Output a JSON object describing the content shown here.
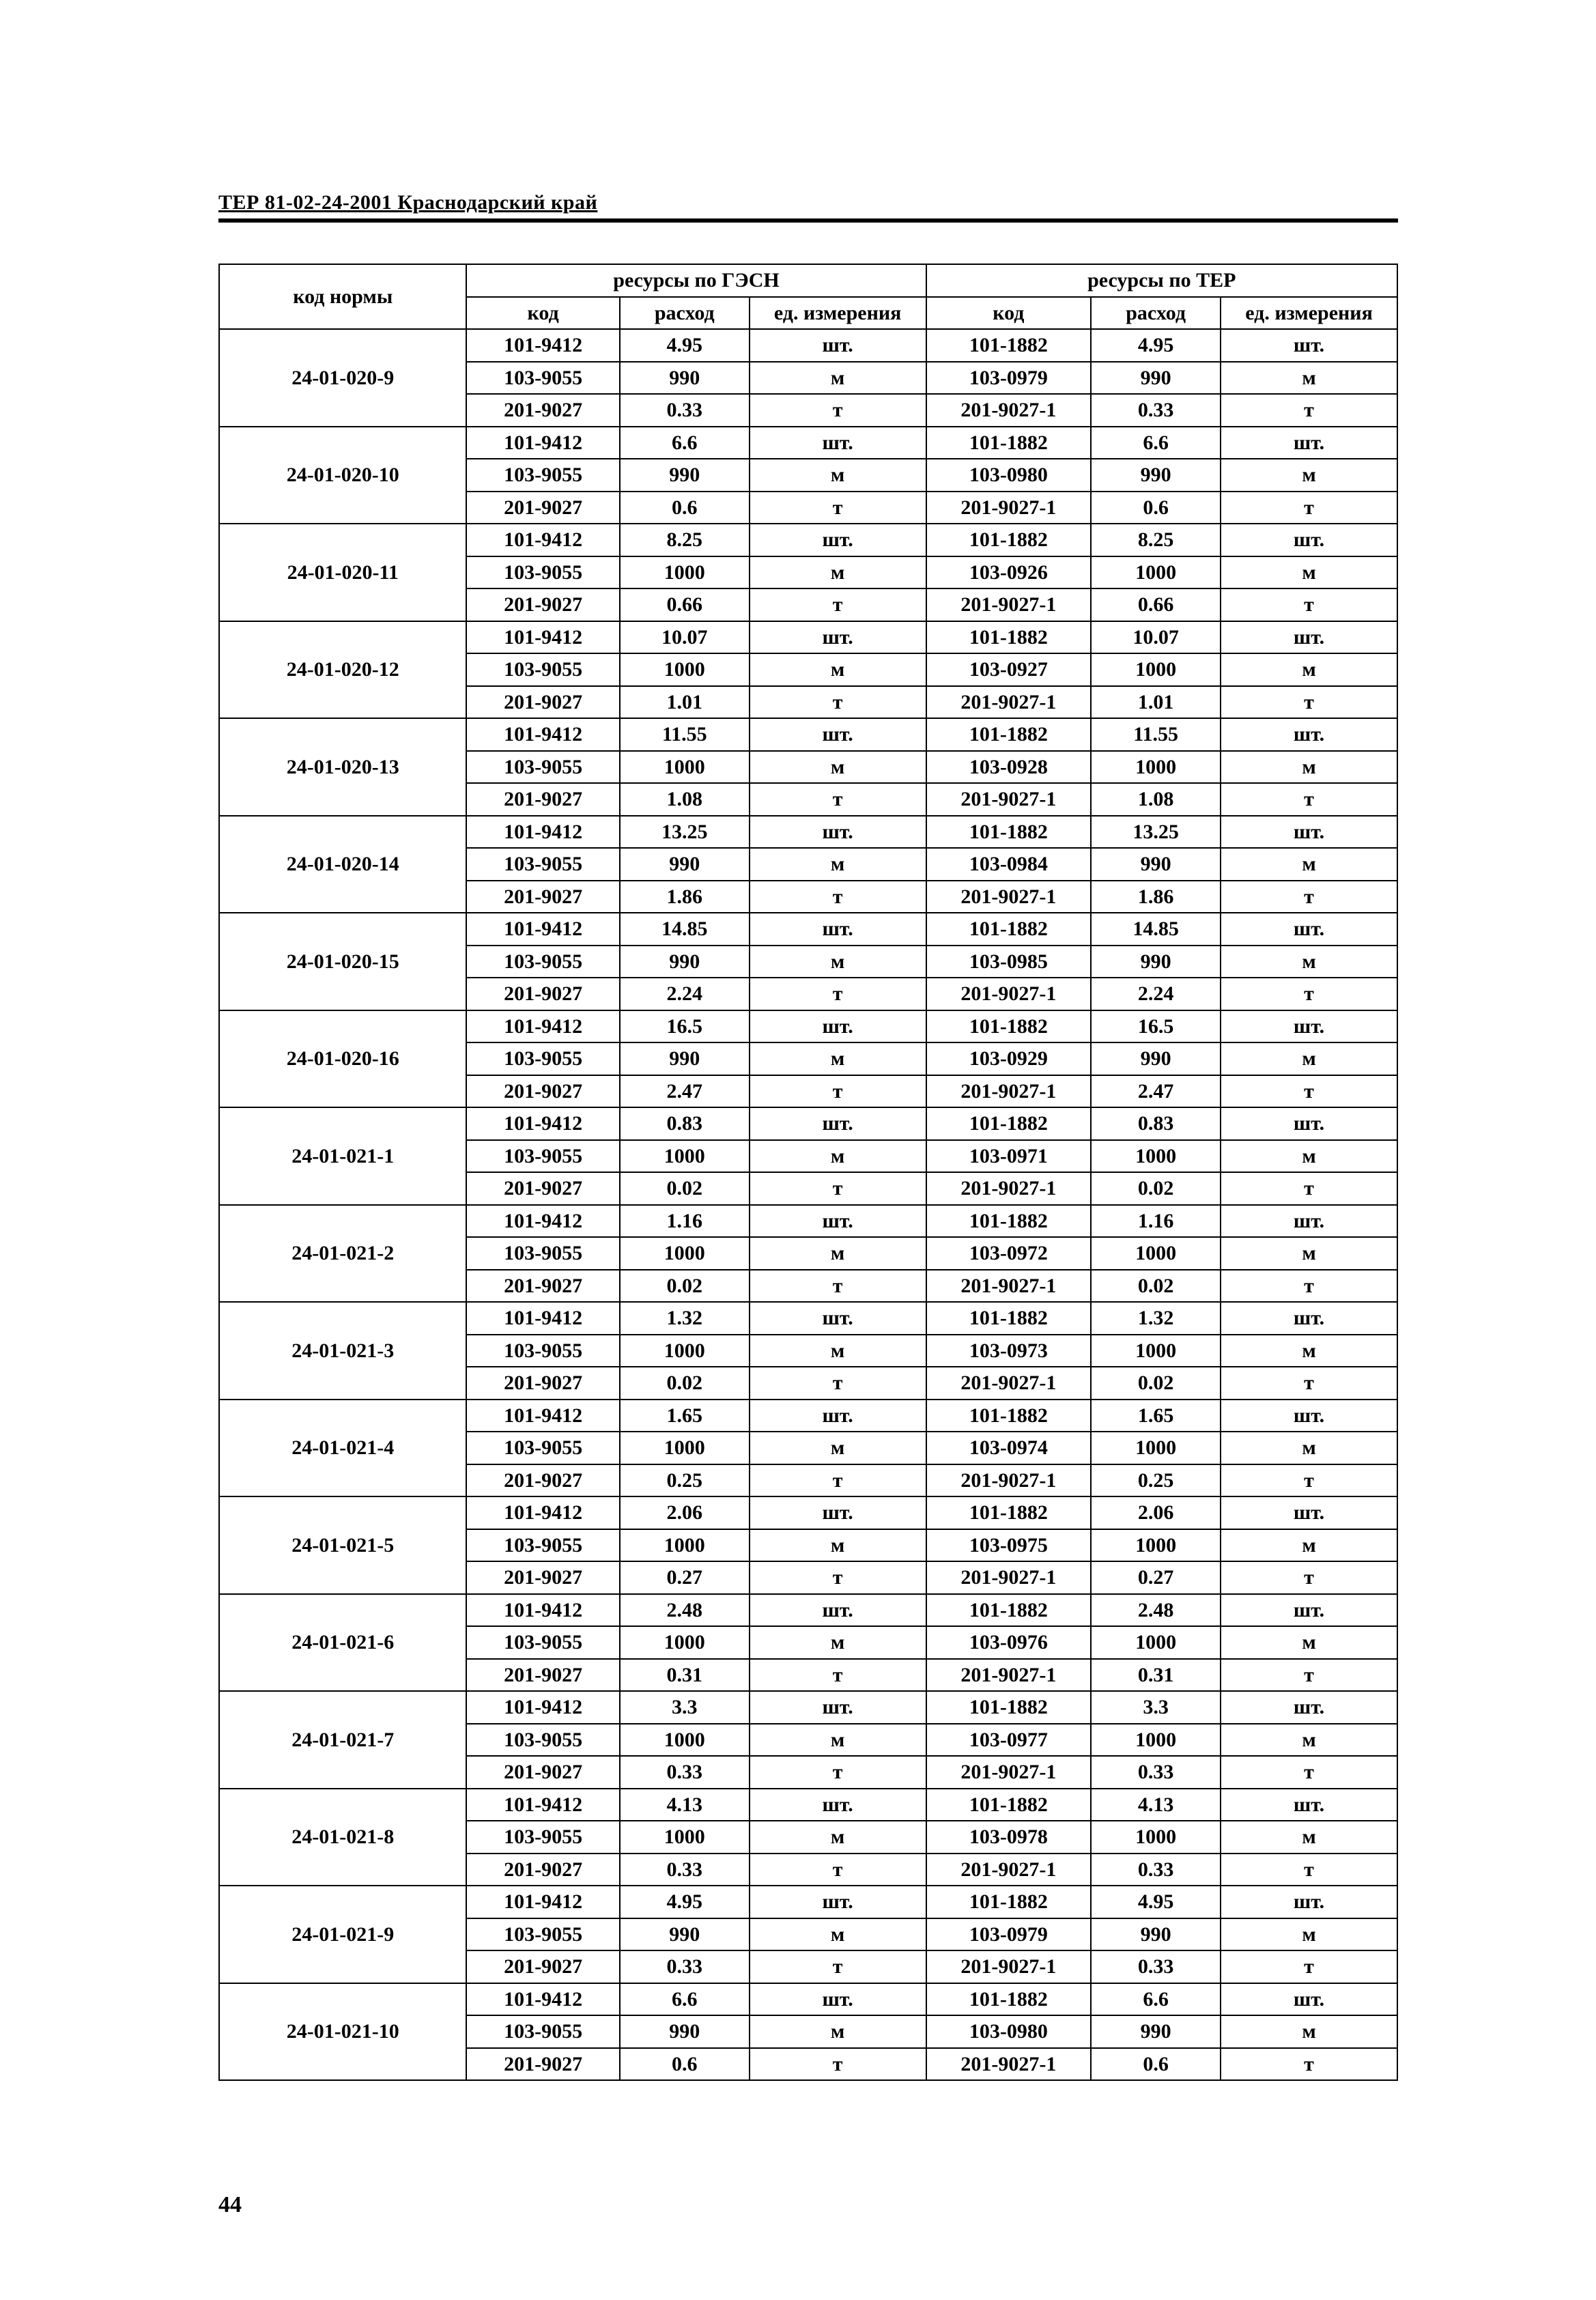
{
  "doc_header": "ТЕР 81-02-24-2001 Краснодарский край",
  "page_number": "44",
  "colors": {
    "text": "#000000",
    "background": "#ffffff",
    "border": "#000000"
  },
  "fonts": {
    "family": "Times New Roman",
    "header_size_pt": 11,
    "cell_size_pt": 11,
    "cell_weight": "bold"
  },
  "table": {
    "header": {
      "norm": "код нормы",
      "group1": "ресурсы по ГЭСН",
      "group2": "ресурсы по ТЕР",
      "kod": "код",
      "rashod": "расход",
      "ed": "ед. измерения"
    },
    "col_widths_pct": [
      21,
      13,
      11,
      15,
      14,
      11,
      15
    ],
    "groups": [
      {
        "norm": "24-01-020-9",
        "rows": [
          {
            "g1": {
              "kod": "101-9412",
              "ras": "4.95",
              "ed": "шт."
            },
            "g2": {
              "kod": "101-1882",
              "ras": "4.95",
              "ed": "шт."
            }
          },
          {
            "g1": {
              "kod": "103-9055",
              "ras": "990",
              "ed": "м"
            },
            "g2": {
              "kod": "103-0979",
              "ras": "990",
              "ed": "м"
            }
          },
          {
            "g1": {
              "kod": "201-9027",
              "ras": "0.33",
              "ed": "т"
            },
            "g2": {
              "kod": "201-9027-1",
              "ras": "0.33",
              "ed": "т"
            }
          }
        ]
      },
      {
        "norm": "24-01-020-10",
        "rows": [
          {
            "g1": {
              "kod": "101-9412",
              "ras": "6.6",
              "ed": "шт."
            },
            "g2": {
              "kod": "101-1882",
              "ras": "6.6",
              "ed": "шт."
            }
          },
          {
            "g1": {
              "kod": "103-9055",
              "ras": "990",
              "ed": "м"
            },
            "g2": {
              "kod": "103-0980",
              "ras": "990",
              "ed": "м"
            }
          },
          {
            "g1": {
              "kod": "201-9027",
              "ras": "0.6",
              "ed": "т"
            },
            "g2": {
              "kod": "201-9027-1",
              "ras": "0.6",
              "ed": "т"
            }
          }
        ]
      },
      {
        "norm": "24-01-020-11",
        "rows": [
          {
            "g1": {
              "kod": "101-9412",
              "ras": "8.25",
              "ed": "шт."
            },
            "g2": {
              "kod": "101-1882",
              "ras": "8.25",
              "ed": "шт."
            }
          },
          {
            "g1": {
              "kod": "103-9055",
              "ras": "1000",
              "ed": "м"
            },
            "g2": {
              "kod": "103-0926",
              "ras": "1000",
              "ed": "м"
            }
          },
          {
            "g1": {
              "kod": "201-9027",
              "ras": "0.66",
              "ed": "т"
            },
            "g2": {
              "kod": "201-9027-1",
              "ras": "0.66",
              "ed": "т"
            }
          }
        ]
      },
      {
        "norm": "24-01-020-12",
        "rows": [
          {
            "g1": {
              "kod": "101-9412",
              "ras": "10.07",
              "ed": "шт."
            },
            "g2": {
              "kod": "101-1882",
              "ras": "10.07",
              "ed": "шт."
            }
          },
          {
            "g1": {
              "kod": "103-9055",
              "ras": "1000",
              "ed": "м"
            },
            "g2": {
              "kod": "103-0927",
              "ras": "1000",
              "ed": "м"
            }
          },
          {
            "g1": {
              "kod": "201-9027",
              "ras": "1.01",
              "ed": "т"
            },
            "g2": {
              "kod": "201-9027-1",
              "ras": "1.01",
              "ed": "т"
            }
          }
        ]
      },
      {
        "norm": "24-01-020-13",
        "rows": [
          {
            "g1": {
              "kod": "101-9412",
              "ras": "11.55",
              "ed": "шт."
            },
            "g2": {
              "kod": "101-1882",
              "ras": "11.55",
              "ed": "шт."
            }
          },
          {
            "g1": {
              "kod": "103-9055",
              "ras": "1000",
              "ed": "м"
            },
            "g2": {
              "kod": "103-0928",
              "ras": "1000",
              "ed": "м"
            }
          },
          {
            "g1": {
              "kod": "201-9027",
              "ras": "1.08",
              "ed": "т"
            },
            "g2": {
              "kod": "201-9027-1",
              "ras": "1.08",
              "ed": "т"
            }
          }
        ]
      },
      {
        "norm": "24-01-020-14",
        "rows": [
          {
            "g1": {
              "kod": "101-9412",
              "ras": "13.25",
              "ed": "шт."
            },
            "g2": {
              "kod": "101-1882",
              "ras": "13.25",
              "ed": "шт."
            }
          },
          {
            "g1": {
              "kod": "103-9055",
              "ras": "990",
              "ed": "м"
            },
            "g2": {
              "kod": "103-0984",
              "ras": "990",
              "ed": "м"
            }
          },
          {
            "g1": {
              "kod": "201-9027",
              "ras": "1.86",
              "ed": "т"
            },
            "g2": {
              "kod": "201-9027-1",
              "ras": "1.86",
              "ed": "т"
            }
          }
        ]
      },
      {
        "norm": "24-01-020-15",
        "rows": [
          {
            "g1": {
              "kod": "101-9412",
              "ras": "14.85",
              "ed": "шт."
            },
            "g2": {
              "kod": "101-1882",
              "ras": "14.85",
              "ed": "шт."
            }
          },
          {
            "g1": {
              "kod": "103-9055",
              "ras": "990",
              "ed": "м"
            },
            "g2": {
              "kod": "103-0985",
              "ras": "990",
              "ed": "м"
            }
          },
          {
            "g1": {
              "kod": "201-9027",
              "ras": "2.24",
              "ed": "т"
            },
            "g2": {
              "kod": "201-9027-1",
              "ras": "2.24",
              "ed": "т"
            }
          }
        ]
      },
      {
        "norm": "24-01-020-16",
        "rows": [
          {
            "g1": {
              "kod": "101-9412",
              "ras": "16.5",
              "ed": "шт."
            },
            "g2": {
              "kod": "101-1882",
              "ras": "16.5",
              "ed": "шт."
            }
          },
          {
            "g1": {
              "kod": "103-9055",
              "ras": "990",
              "ed": "м"
            },
            "g2": {
              "kod": "103-0929",
              "ras": "990",
              "ed": "м"
            }
          },
          {
            "g1": {
              "kod": "201-9027",
              "ras": "2.47",
              "ed": "т"
            },
            "g2": {
              "kod": "201-9027-1",
              "ras": "2.47",
              "ed": "т"
            }
          }
        ]
      },
      {
        "norm": "24-01-021-1",
        "rows": [
          {
            "g1": {
              "kod": "101-9412",
              "ras": "0.83",
              "ed": "шт."
            },
            "g2": {
              "kod": "101-1882",
              "ras": "0.83",
              "ed": "шт."
            }
          },
          {
            "g1": {
              "kod": "103-9055",
              "ras": "1000",
              "ed": "м"
            },
            "g2": {
              "kod": "103-0971",
              "ras": "1000",
              "ed": "м"
            }
          },
          {
            "g1": {
              "kod": "201-9027",
              "ras": "0.02",
              "ed": "т"
            },
            "g2": {
              "kod": "201-9027-1",
              "ras": "0.02",
              "ed": "т"
            }
          }
        ]
      },
      {
        "norm": "24-01-021-2",
        "rows": [
          {
            "g1": {
              "kod": "101-9412",
              "ras": "1.16",
              "ed": "шт."
            },
            "g2": {
              "kod": "101-1882",
              "ras": "1.16",
              "ed": "шт."
            }
          },
          {
            "g1": {
              "kod": "103-9055",
              "ras": "1000",
              "ed": "м"
            },
            "g2": {
              "kod": "103-0972",
              "ras": "1000",
              "ed": "м"
            }
          },
          {
            "g1": {
              "kod": "201-9027",
              "ras": "0.02",
              "ed": "т"
            },
            "g2": {
              "kod": "201-9027-1",
              "ras": "0.02",
              "ed": "т"
            }
          }
        ]
      },
      {
        "norm": "24-01-021-3",
        "rows": [
          {
            "g1": {
              "kod": "101-9412",
              "ras": "1.32",
              "ed": "шт."
            },
            "g2": {
              "kod": "101-1882",
              "ras": "1.32",
              "ed": "шт."
            }
          },
          {
            "g1": {
              "kod": "103-9055",
              "ras": "1000",
              "ed": "м"
            },
            "g2": {
              "kod": "103-0973",
              "ras": "1000",
              "ed": "м"
            }
          },
          {
            "g1": {
              "kod": "201-9027",
              "ras": "0.02",
              "ed": "т"
            },
            "g2": {
              "kod": "201-9027-1",
              "ras": "0.02",
              "ed": "т"
            }
          }
        ]
      },
      {
        "norm": "24-01-021-4",
        "rows": [
          {
            "g1": {
              "kod": "101-9412",
              "ras": "1.65",
              "ed": "шт."
            },
            "g2": {
              "kod": "101-1882",
              "ras": "1.65",
              "ed": "шт."
            }
          },
          {
            "g1": {
              "kod": "103-9055",
              "ras": "1000",
              "ed": "м"
            },
            "g2": {
              "kod": "103-0974",
              "ras": "1000",
              "ed": "м"
            }
          },
          {
            "g1": {
              "kod": "201-9027",
              "ras": "0.25",
              "ed": "т"
            },
            "g2": {
              "kod": "201-9027-1",
              "ras": "0.25",
              "ed": "т"
            }
          }
        ]
      },
      {
        "norm": "24-01-021-5",
        "rows": [
          {
            "g1": {
              "kod": "101-9412",
              "ras": "2.06",
              "ed": "шт."
            },
            "g2": {
              "kod": "101-1882",
              "ras": "2.06",
              "ed": "шт."
            }
          },
          {
            "g1": {
              "kod": "103-9055",
              "ras": "1000",
              "ed": "м"
            },
            "g2": {
              "kod": "103-0975",
              "ras": "1000",
              "ed": "м"
            }
          },
          {
            "g1": {
              "kod": "201-9027",
              "ras": "0.27",
              "ed": "т"
            },
            "g2": {
              "kod": "201-9027-1",
              "ras": "0.27",
              "ed": "т"
            }
          }
        ]
      },
      {
        "norm": "24-01-021-6",
        "rows": [
          {
            "g1": {
              "kod": "101-9412",
              "ras": "2.48",
              "ed": "шт."
            },
            "g2": {
              "kod": "101-1882",
              "ras": "2.48",
              "ed": "шт."
            }
          },
          {
            "g1": {
              "kod": "103-9055",
              "ras": "1000",
              "ed": "м"
            },
            "g2": {
              "kod": "103-0976",
              "ras": "1000",
              "ed": "м"
            }
          },
          {
            "g1": {
              "kod": "201-9027",
              "ras": "0.31",
              "ed": "т"
            },
            "g2": {
              "kod": "201-9027-1",
              "ras": "0.31",
              "ed": "т"
            }
          }
        ]
      },
      {
        "norm": "24-01-021-7",
        "rows": [
          {
            "g1": {
              "kod": "101-9412",
              "ras": "3.3",
              "ed": "шт."
            },
            "g2": {
              "kod": "101-1882",
              "ras": "3.3",
              "ed": "шт."
            }
          },
          {
            "g1": {
              "kod": "103-9055",
              "ras": "1000",
              "ed": "м"
            },
            "g2": {
              "kod": "103-0977",
              "ras": "1000",
              "ed": "м"
            }
          },
          {
            "g1": {
              "kod": "201-9027",
              "ras": "0.33",
              "ed": "т"
            },
            "g2": {
              "kod": "201-9027-1",
              "ras": "0.33",
              "ed": "т"
            }
          }
        ]
      },
      {
        "norm": "24-01-021-8",
        "rows": [
          {
            "g1": {
              "kod": "101-9412",
              "ras": "4.13",
              "ed": "шт."
            },
            "g2": {
              "kod": "101-1882",
              "ras": "4.13",
              "ed": "шт."
            }
          },
          {
            "g1": {
              "kod": "103-9055",
              "ras": "1000",
              "ed": "м"
            },
            "g2": {
              "kod": "103-0978",
              "ras": "1000",
              "ed": "м"
            }
          },
          {
            "g1": {
              "kod": "201-9027",
              "ras": "0.33",
              "ed": "т"
            },
            "g2": {
              "kod": "201-9027-1",
              "ras": "0.33",
              "ed": "т"
            }
          }
        ]
      },
      {
        "norm": "24-01-021-9",
        "rows": [
          {
            "g1": {
              "kod": "101-9412",
              "ras": "4.95",
              "ed": "шт."
            },
            "g2": {
              "kod": "101-1882",
              "ras": "4.95",
              "ed": "шт."
            }
          },
          {
            "g1": {
              "kod": "103-9055",
              "ras": "990",
              "ed": "м"
            },
            "g2": {
              "kod": "103-0979",
              "ras": "990",
              "ed": "м"
            }
          },
          {
            "g1": {
              "kod": "201-9027",
              "ras": "0.33",
              "ed": "т"
            },
            "g2": {
              "kod": "201-9027-1",
              "ras": "0.33",
              "ed": "т"
            }
          }
        ]
      },
      {
        "norm": "24-01-021-10",
        "rows": [
          {
            "g1": {
              "kod": "101-9412",
              "ras": "6.6",
              "ed": "шт."
            },
            "g2": {
              "kod": "101-1882",
              "ras": "6.6",
              "ed": "шт."
            }
          },
          {
            "g1": {
              "kod": "103-9055",
              "ras": "990",
              "ed": "м"
            },
            "g2": {
              "kod": "103-0980",
              "ras": "990",
              "ed": "м"
            }
          },
          {
            "g1": {
              "kod": "201-9027",
              "ras": "0.6",
              "ed": "т"
            },
            "g2": {
              "kod": "201-9027-1",
              "ras": "0.6",
              "ed": "т"
            }
          }
        ]
      }
    ]
  }
}
